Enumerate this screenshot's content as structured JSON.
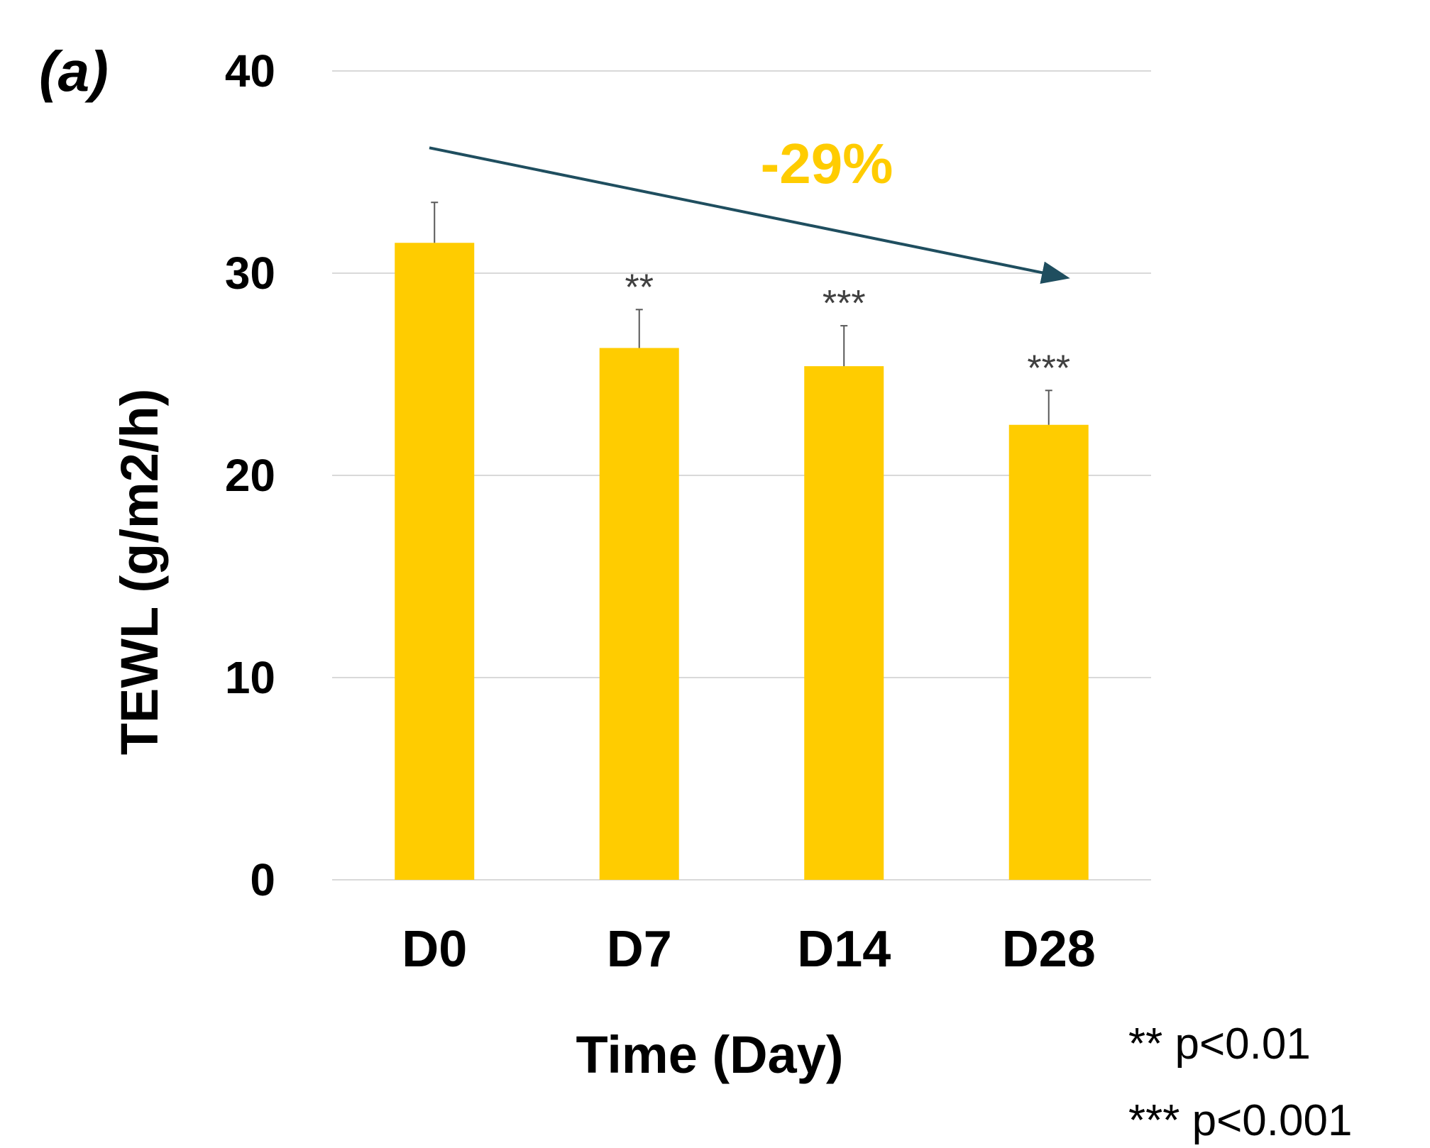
{
  "panel_label": "(a)",
  "colors": {
    "bar": "#FFCC00",
    "trend_arrow": "#1F4E5F",
    "trend_label": "#FFCC00",
    "grid": "#D9D9D9",
    "error_bar": "#595959",
    "significance": "#404040"
  },
  "chart_data": {
    "type": "bar",
    "title": "",
    "xlabel": "Time (Day)",
    "ylabel": "TEWL (g/m2/h)",
    "ylim": [
      0,
      40
    ],
    "yticks": [
      0,
      10,
      20,
      30,
      40
    ],
    "grid": true,
    "categories": [
      "D0",
      "D7",
      "D14",
      "D28"
    ],
    "values": [
      31.5,
      26.3,
      25.4,
      22.5
    ],
    "errors": [
      2.0,
      1.9,
      2.0,
      1.7
    ],
    "significance": [
      "",
      "**",
      "***",
      "***"
    ],
    "trend": {
      "label": "-29%",
      "from": 36.2,
      "to": 29.8
    }
  },
  "legend_notes": [
    "** p<0.01",
    "*** p<0.001"
  ]
}
